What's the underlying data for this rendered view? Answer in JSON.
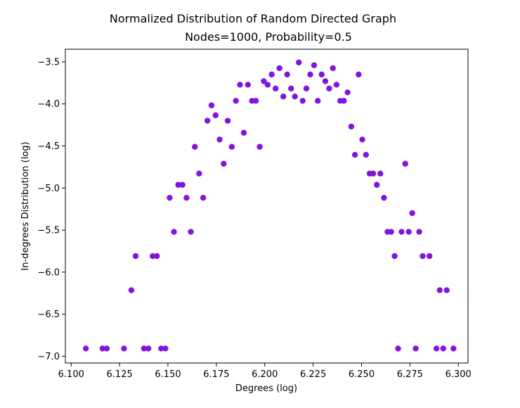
{
  "figure": {
    "suptitle": "Normalized Distribution of Random Directed Graph",
    "title": "Nodes=1000, Probability=0.5",
    "xlabel": "Degrees (log)",
    "ylabel": "In-degrees Distribution (log)",
    "xticks": [
      "6.100",
      "6.125",
      "6.150",
      "6.175",
      "6.200",
      "6.225",
      "6.250",
      "6.275",
      "6.300"
    ],
    "yticks": [
      "−3.5",
      "−4.0",
      "−4.5",
      "−5.0",
      "−5.5",
      "−6.0",
      "−6.5",
      "−7.0"
    ]
  },
  "chart_data": {
    "type": "scatter",
    "title": "Nodes=1000, Probability=0.5",
    "suptitle": "Normalized Distribution of Random Directed Graph",
    "xlabel": "Degrees (log)",
    "ylabel": "In-degrees Distribution (log)",
    "xlim": [
      6.097,
      6.305
    ],
    "ylim": [
      -7.08,
      -3.35
    ],
    "xticks": [
      6.1,
      6.125,
      6.15,
      6.175,
      6.2,
      6.225,
      6.25,
      6.275,
      6.3
    ],
    "yticks": [
      -3.5,
      -4.0,
      -4.5,
      -5.0,
      -5.5,
      -6.0,
      -6.5,
      -7.0
    ],
    "grid": false,
    "color": "#8214e0",
    "points": [
      [
        6.1076,
        -6.908
      ],
      [
        6.1162,
        -6.908
      ],
      [
        6.1184,
        -6.908
      ],
      [
        6.1273,
        -6.908
      ],
      [
        6.1311,
        -6.215
      ],
      [
        6.1333,
        -5.809
      ],
      [
        6.1376,
        -6.908
      ],
      [
        6.1399,
        -6.908
      ],
      [
        6.1421,
        -5.809
      ],
      [
        6.1443,
        -5.809
      ],
      [
        6.1465,
        -6.908
      ],
      [
        6.1487,
        -6.908
      ],
      [
        6.1509,
        -5.116
      ],
      [
        6.1531,
        -5.521
      ],
      [
        6.1553,
        -4.962
      ],
      [
        6.1575,
        -4.962
      ],
      [
        6.1596,
        -5.116
      ],
      [
        6.1618,
        -5.521
      ],
      [
        6.1639,
        -4.51
      ],
      [
        6.1661,
        -4.828
      ],
      [
        6.1682,
        -5.116
      ],
      [
        6.1704,
        -4.2
      ],
      [
        6.1725,
        -4.017
      ],
      [
        6.1746,
        -4.135
      ],
      [
        6.1767,
        -4.423
      ],
      [
        6.1788,
        -4.711
      ],
      [
        6.1809,
        -4.2
      ],
      [
        6.183,
        -4.51
      ],
      [
        6.1851,
        -3.963
      ],
      [
        6.1872,
        -3.772
      ],
      [
        6.1892,
        -4.343
      ],
      [
        6.1913,
        -3.772
      ],
      [
        6.1934,
        -3.963
      ],
      [
        6.1954,
        -3.963
      ],
      [
        6.1974,
        -4.51
      ],
      [
        6.1995,
        -3.73
      ],
      [
        6.2015,
        -3.772
      ],
      [
        6.2036,
        -3.65
      ],
      [
        6.2056,
        -3.817
      ],
      [
        6.2076,
        -3.575
      ],
      [
        6.2096,
        -3.912
      ],
      [
        6.2116,
        -3.65
      ],
      [
        6.2136,
        -3.817
      ],
      [
        6.2156,
        -3.912
      ],
      [
        6.2176,
        -3.507
      ],
      [
        6.2196,
        -3.963
      ],
      [
        6.2215,
        -3.817
      ],
      [
        6.2235,
        -3.65
      ],
      [
        6.2255,
        -3.54
      ],
      [
        6.2274,
        -3.963
      ],
      [
        6.2294,
        -3.65
      ],
      [
        6.2313,
        -3.73
      ],
      [
        6.2333,
        -3.817
      ],
      [
        6.2352,
        -3.575
      ],
      [
        6.2371,
        -3.772
      ],
      [
        6.239,
        -3.963
      ],
      [
        6.2409,
        -3.963
      ],
      [
        6.2428,
        -3.863
      ],
      [
        6.2447,
        -4.269
      ],
      [
        6.2466,
        -4.605
      ],
      [
        6.2485,
        -3.65
      ],
      [
        6.2504,
        -4.423
      ],
      [
        6.2523,
        -4.605
      ],
      [
        6.2542,
        -4.828
      ],
      [
        6.256,
        -4.828
      ],
      [
        6.2579,
        -4.962
      ],
      [
        6.2597,
        -4.828
      ],
      [
        6.2616,
        -5.116
      ],
      [
        6.2634,
        -5.521
      ],
      [
        6.2653,
        -5.521
      ],
      [
        6.2671,
        -5.809
      ],
      [
        6.2689,
        -6.908
      ],
      [
        6.2707,
        -5.521
      ],
      [
        6.2726,
        -4.711
      ],
      [
        6.2744,
        -5.521
      ],
      [
        6.2762,
        -5.298
      ],
      [
        6.278,
        -6.908
      ],
      [
        6.2798,
        -5.521
      ],
      [
        6.2816,
        -5.809
      ],
      [
        6.2851,
        -5.809
      ],
      [
        6.2887,
        -6.908
      ],
      [
        6.2904,
        -6.215
      ],
      [
        6.2922,
        -6.908
      ],
      [
        6.294,
        -6.215
      ],
      [
        6.2975,
        -6.908
      ]
    ]
  }
}
